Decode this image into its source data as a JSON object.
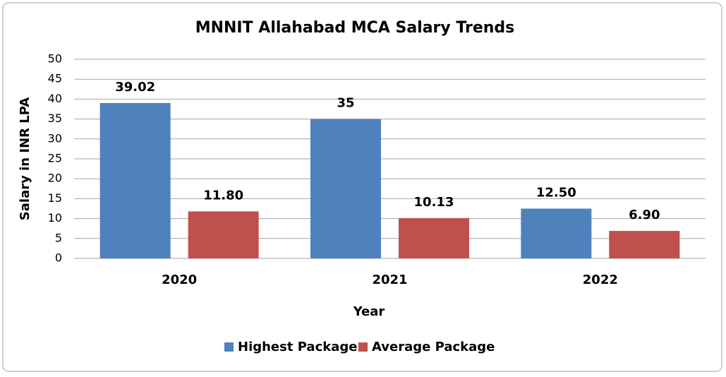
{
  "chart_data": {
    "type": "bar",
    "title": "MNNIT Allahabad MCA Salary Trends",
    "x_label": "Year",
    "y_label": "Salary in INR LPA",
    "categories": [
      "2020",
      "2021",
      "2022"
    ],
    "series": [
      {
        "name": "Highest Package",
        "color": "#4f81bd",
        "values": [
          39.02,
          35,
          12.5
        ],
        "value_labels": [
          "39.02",
          "35",
          "12.50"
        ]
      },
      {
        "name": "Average Package",
        "color": "#c0504d",
        "values": [
          11.8,
          10.13,
          6.9
        ],
        "value_labels": [
          "11.80",
          "10.13",
          "6.90"
        ]
      }
    ],
    "ylim": [
      0,
      50
    ],
    "yticks": [
      0,
      5,
      10,
      15,
      20,
      25,
      30,
      35,
      40,
      45,
      50
    ],
    "grid": true,
    "legend": "bottom"
  }
}
